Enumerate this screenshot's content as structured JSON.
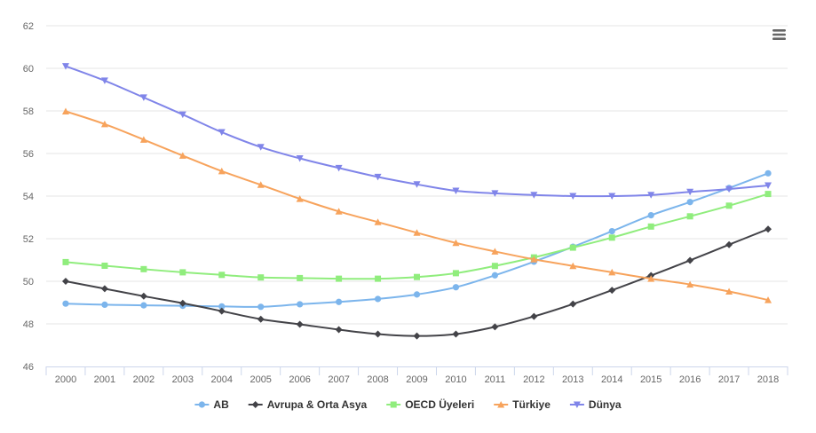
{
  "chart_data": {
    "type": "line",
    "title": "",
    "xlabel": "",
    "ylabel": "",
    "categories": [
      "2000",
      "2001",
      "2002",
      "2003",
      "2004",
      "2005",
      "2006",
      "2007",
      "2008",
      "2009",
      "2010",
      "2011",
      "2012",
      "2013",
      "2014",
      "2015",
      "2016",
      "2017",
      "2018"
    ],
    "ylim": [
      46,
      62
    ],
    "yticks": [
      46,
      48,
      50,
      52,
      54,
      56,
      58,
      60,
      62
    ],
    "grid": true,
    "legend_position": "bottom-center",
    "series": [
      {
        "name": "AB",
        "color": "#7cb5ec",
        "marker": "circle",
        "values": [
          48.95,
          48.9,
          48.87,
          48.85,
          48.82,
          48.8,
          48.92,
          49.03,
          49.17,
          49.38,
          49.72,
          50.28,
          50.92,
          51.62,
          52.35,
          53.1,
          53.72,
          54.38,
          55.07
        ]
      },
      {
        "name": "Avrupa & Orta Asya",
        "color": "#434348",
        "marker": "diamond",
        "values": [
          50.0,
          49.65,
          49.3,
          48.97,
          48.6,
          48.22,
          47.98,
          47.73,
          47.52,
          47.43,
          47.52,
          47.86,
          48.35,
          48.93,
          49.58,
          50.27,
          50.98,
          51.72,
          52.45
        ]
      },
      {
        "name": "OECD Üyeleri",
        "color": "#90ed7d",
        "marker": "square",
        "values": [
          50.9,
          50.73,
          50.57,
          50.42,
          50.3,
          50.18,
          50.15,
          50.12,
          50.12,
          50.2,
          50.38,
          50.72,
          51.12,
          51.58,
          52.05,
          52.57,
          53.05,
          53.55,
          54.1
        ]
      },
      {
        "name": "Türkiye",
        "color": "#f7a35c",
        "marker": "triangle",
        "values": [
          57.98,
          57.38,
          56.65,
          55.9,
          55.17,
          54.53,
          53.87,
          53.28,
          52.78,
          52.28,
          51.8,
          51.4,
          51.03,
          50.72,
          50.42,
          50.12,
          49.85,
          49.52,
          49.12
        ]
      },
      {
        "name": "Dünya",
        "color": "#8085e9",
        "marker": "triangle-down",
        "values": [
          60.1,
          59.42,
          58.63,
          57.83,
          57.0,
          56.3,
          55.77,
          55.32,
          54.9,
          54.55,
          54.25,
          54.13,
          54.05,
          54.0,
          54.0,
          54.05,
          54.2,
          54.33,
          54.5
        ]
      }
    ]
  },
  "toolbar": {
    "menu_icon": "hamburger-icon"
  }
}
